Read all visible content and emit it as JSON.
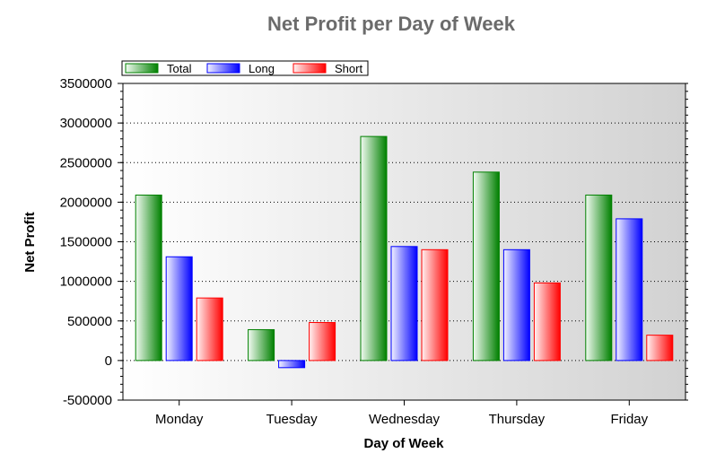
{
  "chart_data": {
    "type": "bar",
    "title": "Net Profit per Day of Week",
    "xlabel": "Day of Week",
    "ylabel": "Net Profit",
    "categories": [
      "Monday",
      "Tuesday",
      "Wednesday",
      "Thursday",
      "Friday"
    ],
    "series": [
      {
        "name": "Total",
        "color": "#008000",
        "values": [
          2090000,
          390000,
          2830000,
          2380000,
          2090000
        ]
      },
      {
        "name": "Long",
        "color": "#0000ff",
        "values": [
          1310000,
          -90000,
          1440000,
          1400000,
          1790000
        ]
      },
      {
        "name": "Short",
        "color": "#ff0000",
        "values": [
          790000,
          480000,
          1400000,
          980000,
          320000
        ]
      }
    ],
    "ylim": [
      -500000,
      3500000
    ],
    "yticks": [
      "-500000",
      "0",
      "500000",
      "1000000",
      "1500000",
      "2000000",
      "2500000",
      "3000000",
      "3500000"
    ],
    "grid": true,
    "legend": "top-left"
  }
}
